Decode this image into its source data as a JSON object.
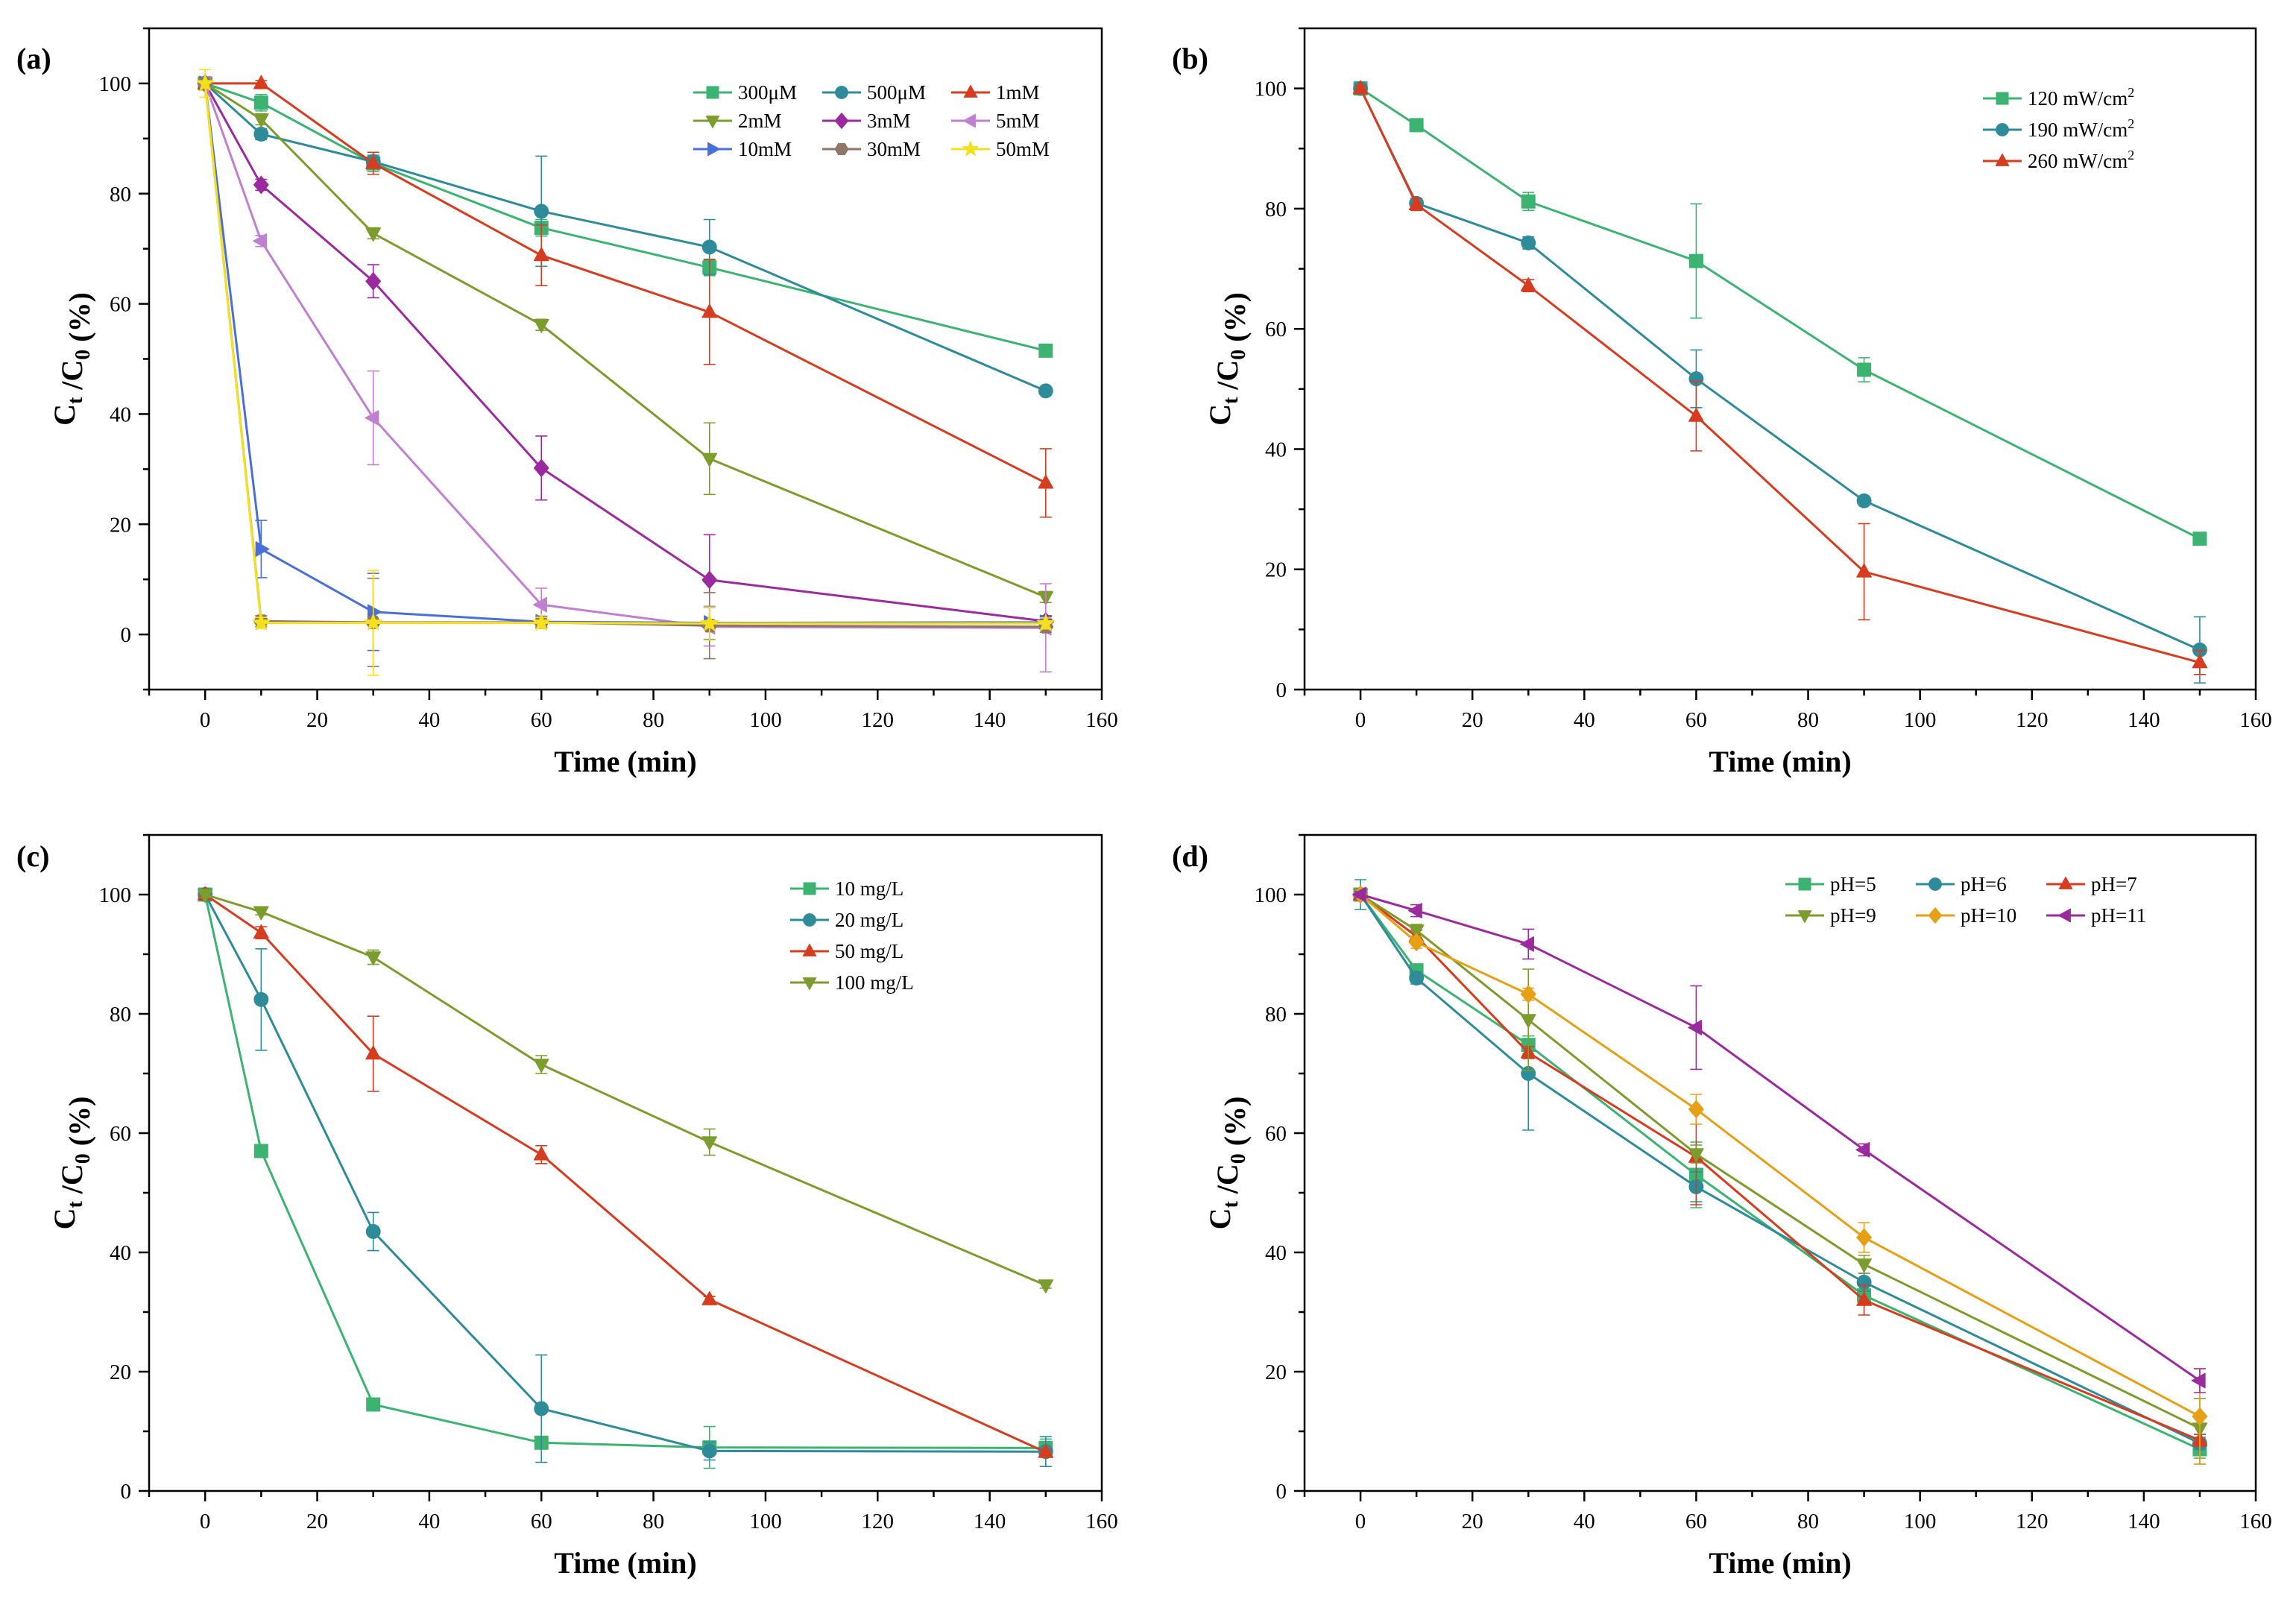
{
  "figure": {
    "background": "#ffffff"
  },
  "chart_data": [
    {
      "panel": "(a)",
      "type": "line",
      "xlabel": "Time (min)",
      "ylabel": "Ct /C0 (%)",
      "ylabel_parts": {
        "main1": "C",
        "sub1": "t",
        "main2": " /C",
        "sub2": "0",
        "main3": " (%)"
      },
      "xlim": [
        -10,
        160
      ],
      "ylim": [
        -10,
        110
      ],
      "xticks": [
        0,
        20,
        40,
        60,
        80,
        100,
        120,
        140,
        160
      ],
      "yticks": [
        0,
        20,
        40,
        60,
        80,
        100
      ],
      "x": [
        0,
        10,
        30,
        60,
        90,
        150
      ],
      "legend_position": "top-right",
      "legend_columns": 3,
      "series": [
        {
          "name": "300μM",
          "color": "#3cb371",
          "marker": "square",
          "values": [
            100,
            96.5,
            85.5,
            73.8,
            66.6,
            51.5
          ],
          "errors": [
            1.0,
            1.5,
            1.5,
            1.5,
            1.5,
            0.5
          ]
        },
        {
          "name": "500μM",
          "color": "#2e8b9a",
          "marker": "circle",
          "values": [
            100,
            90.8,
            85.8,
            76.8,
            70.3,
            44.2
          ],
          "errors": [
            1.0,
            1.0,
            1.0,
            10.0,
            5.0,
            0.5
          ]
        },
        {
          "name": "1mM",
          "color": "#d63c1f",
          "marker": "triangle-up",
          "values": [
            100,
            100,
            85.5,
            68.8,
            58.5,
            27.5
          ],
          "errors": [
            0.5,
            0.5,
            2.0,
            5.5,
            9.5,
            6.2
          ]
        },
        {
          "name": "2mM",
          "color": "#7d9c2e",
          "marker": "triangle-down",
          "values": [
            100,
            93.5,
            72.8,
            56.2,
            31.9,
            6.8
          ],
          "errors": [
            0.5,
            1.0,
            1.0,
            1.0,
            6.5,
            1.0
          ]
        },
        {
          "name": "3mM",
          "color": "#9b2a9f",
          "marker": "diamond",
          "values": [
            100,
            81.6,
            64.1,
            30.2,
            9.9,
            2.4
          ],
          "errors": [
            0.5,
            1.0,
            3.0,
            5.8,
            8.2,
            1.0
          ]
        },
        {
          "name": "5mM",
          "color": "#c07fcf",
          "marker": "triangle-left",
          "values": [
            100,
            71.4,
            39.3,
            5.4,
            1.4,
            1.2
          ],
          "errors": [
            0.5,
            1.0,
            8.5,
            3.0,
            3.5,
            8.0
          ]
        },
        {
          "name": "10mM",
          "color": "#4a6fd8",
          "marker": "triangle-right",
          "values": [
            100,
            15.5,
            4.1,
            2.3,
            2.1,
            2.2
          ],
          "errors": [
            0.5,
            5.2,
            7.0,
            1.0,
            3.0,
            1.0
          ]
        },
        {
          "name": "30mM",
          "color": "#8e7669",
          "marker": "hexagon",
          "values": [
            100,
            2.4,
            2.2,
            2.2,
            1.6,
            1.4
          ],
          "errors": [
            0.5,
            1.0,
            8.0,
            1.0,
            6.0,
            1.0
          ]
        },
        {
          "name": "50mM",
          "color": "#f4e01c",
          "marker": "star",
          "values": [
            100,
            2.1,
            2.1,
            2.1,
            2.0,
            2.0
          ],
          "errors": [
            2.5,
            1.0,
            9.5,
            1.0,
            3.0,
            1.0
          ]
        }
      ]
    },
    {
      "panel": "(b)",
      "type": "line",
      "xlabel": "Time (min)",
      "ylabel": "Ct /C0 (%)",
      "ylabel_parts": {
        "main1": "C",
        "sub1": "t",
        "main2": " /C",
        "sub2": "0",
        "main3": " (%)"
      },
      "xlim": [
        -10,
        160
      ],
      "ylim": [
        0,
        110
      ],
      "xticks": [
        0,
        20,
        40,
        60,
        80,
        100,
        120,
        140,
        160
      ],
      "yticks": [
        0,
        20,
        40,
        60,
        80,
        100
      ],
      "x": [
        0,
        10,
        30,
        60,
        90,
        150
      ],
      "legend_position": "top-right",
      "legend_columns": 1,
      "series": [
        {
          "name": "120 mW/cm",
          "superscript": "2",
          "color": "#3cb371",
          "marker": "square",
          "values": [
            100,
            93.9,
            81.2,
            71.3,
            53.2,
            25.1
          ],
          "errors": [
            0.5,
            0.5,
            1.5,
            9.5,
            2.0,
            0.5
          ]
        },
        {
          "name": "190 mW/cm",
          "superscript": "2",
          "color": "#2e8b9a",
          "marker": "circle",
          "values": [
            100,
            80.9,
            74.3,
            51.7,
            31.4,
            6.6
          ],
          "errors": [
            0.5,
            0.5,
            1.0,
            4.8,
            0.5,
            5.5
          ]
        },
        {
          "name": "260 mW/cm",
          "superscript": "2",
          "color": "#d63c1f",
          "marker": "triangle-up",
          "values": [
            100,
            80.7,
            67.2,
            45.5,
            19.6,
            4.5
          ],
          "errors": [
            0.5,
            1.0,
            1.0,
            5.8,
            8.0,
            2.0
          ]
        }
      ]
    },
    {
      "panel": "(c)",
      "type": "line",
      "xlabel": "Time (min)",
      "ylabel": "Ct /C0 (%)",
      "ylabel_parts": {
        "main1": "C",
        "sub1": "t",
        "main2": " /C",
        "sub2": "0",
        "main3": " (%)"
      },
      "xlim": [
        -10,
        160
      ],
      "ylim": [
        0,
        110
      ],
      "xticks": [
        0,
        20,
        40,
        60,
        80,
        100,
        120,
        140,
        160
      ],
      "yticks": [
        0,
        20,
        40,
        60,
        80,
        100
      ],
      "x": [
        0,
        10,
        30,
        60,
        90,
        150
      ],
      "legend_position": "top-right",
      "legend_columns": 1,
      "series": [
        {
          "name": "10 mg/L",
          "color": "#3cb371",
          "marker": "square",
          "values": [
            100,
            57.0,
            14.5,
            8.1,
            7.3,
            7.2
          ],
          "errors": [
            0.5,
            0.5,
            1.0,
            1.0,
            3.5,
            1.5
          ]
        },
        {
          "name": "20 mg/L",
          "color": "#2e8b9a",
          "marker": "circle",
          "values": [
            100,
            82.4,
            43.5,
            13.8,
            6.7,
            6.6
          ],
          "errors": [
            0.5,
            8.5,
            3.2,
            9.0,
            1.5,
            2.5
          ]
        },
        {
          "name": "50 mg/L",
          "color": "#d63c1f",
          "marker": "triangle-up",
          "values": [
            100,
            93.6,
            73.3,
            56.4,
            32.1,
            6.5
          ],
          "errors": [
            0.5,
            1.0,
            6.3,
            1.5,
            0.5,
            0.5
          ]
        },
        {
          "name": "100 mg/L",
          "color": "#7d9c2e",
          "marker": "triangle-down",
          "values": [
            100,
            97.1,
            89.5,
            71.5,
            58.5,
            34.5
          ],
          "errors": [
            0.5,
            0.5,
            1.2,
            1.5,
            2.2,
            0.5
          ]
        }
      ]
    },
    {
      "panel": "(d)",
      "type": "line",
      "xlabel": "Time (min)",
      "ylabel": "Ct /C0 (%)",
      "ylabel_parts": {
        "main1": "C",
        "sub1": "t",
        "main2": " /C",
        "sub2": "0",
        "main3": " (%)"
      },
      "xlim": [
        -10,
        160
      ],
      "ylim": [
        0,
        110
      ],
      "xticks": [
        0,
        20,
        40,
        60,
        80,
        100,
        120,
        140,
        160
      ],
      "yticks": [
        0,
        20,
        40,
        60,
        80,
        100
      ],
      "x": [
        0,
        10,
        30,
        60,
        90,
        150
      ],
      "legend_position": "top-right",
      "legend_columns": 3,
      "series": [
        {
          "name": "pH=5",
          "color": "#3cb371",
          "marker": "square",
          "values": [
            100,
            87.3,
            74.8,
            53.0,
            32.8,
            7.0
          ],
          "errors": [
            0.5,
            1.0,
            1.5,
            5.5,
            1.5,
            2.5
          ]
        },
        {
          "name": "pH=6",
          "color": "#2e8b9a",
          "marker": "circle",
          "values": [
            100,
            86.0,
            70.0,
            51.0,
            35.0,
            8.0
          ],
          "errors": [
            2.5,
            1.0,
            9.5,
            2.5,
            1.5,
            1.0
          ]
        },
        {
          "name": "pH=7",
          "color": "#d63c1f",
          "marker": "triangle-up",
          "values": [
            100,
            93.0,
            73.5,
            56.0,
            32.0,
            8.5
          ],
          "errors": [
            0.5,
            1.0,
            1.0,
            8.0,
            2.5,
            1.0
          ]
        },
        {
          "name": "pH=9",
          "color": "#7d9c2e",
          "marker": "triangle-down",
          "values": [
            100,
            94.0,
            79.0,
            56.5,
            38.0,
            10.5
          ],
          "errors": [
            0.5,
            1.0,
            8.5,
            1.5,
            1.5,
            5.0
          ]
        },
        {
          "name": "pH=10",
          "color": "#e6a017",
          "marker": "diamond",
          "values": [
            100,
            92.0,
            83.3,
            64.0,
            42.5,
            12.5
          ],
          "errors": [
            0.5,
            1.0,
            1.0,
            2.5,
            2.5,
            8.0
          ]
        },
        {
          "name": "pH=11",
          "color": "#9b2a9f",
          "marker": "triangle-left",
          "values": [
            100,
            97.3,
            91.7,
            77.7,
            57.2,
            18.5
          ],
          "errors": [
            0.5,
            1.0,
            2.5,
            7.0,
            1.0,
            2.0
          ]
        }
      ]
    }
  ]
}
